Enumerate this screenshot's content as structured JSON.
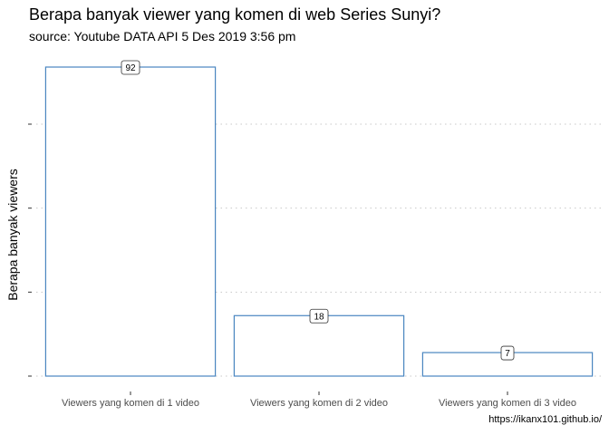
{
  "chart_data": {
    "type": "bar",
    "title": "Berapa banyak viewer yang komen di web Series Sunyi?",
    "subtitle": "source: Youtube DATA API 5 Des 2019 3:56 pm",
    "caption": "https://ikanx101.github.io/",
    "xlabel": "",
    "ylabel": "Berapa banyak viewers",
    "categories": [
      "Viewers yang komen di 1 video",
      "Viewers yang komen di 2 video",
      "Viewers yang komen di 3 video"
    ],
    "values": [
      92,
      18,
      7
    ],
    "ylim": [
      0,
      92
    ],
    "y_gridlines": [
      0,
      25,
      50,
      75
    ],
    "grid": "horizontal dotted",
    "legend": "none",
    "y_tick_labels_shown": false,
    "colors": {
      "bar_fill": "#ffffff",
      "bar_outline": "#4a86c0",
      "grid": "#c8c8c8"
    }
  }
}
